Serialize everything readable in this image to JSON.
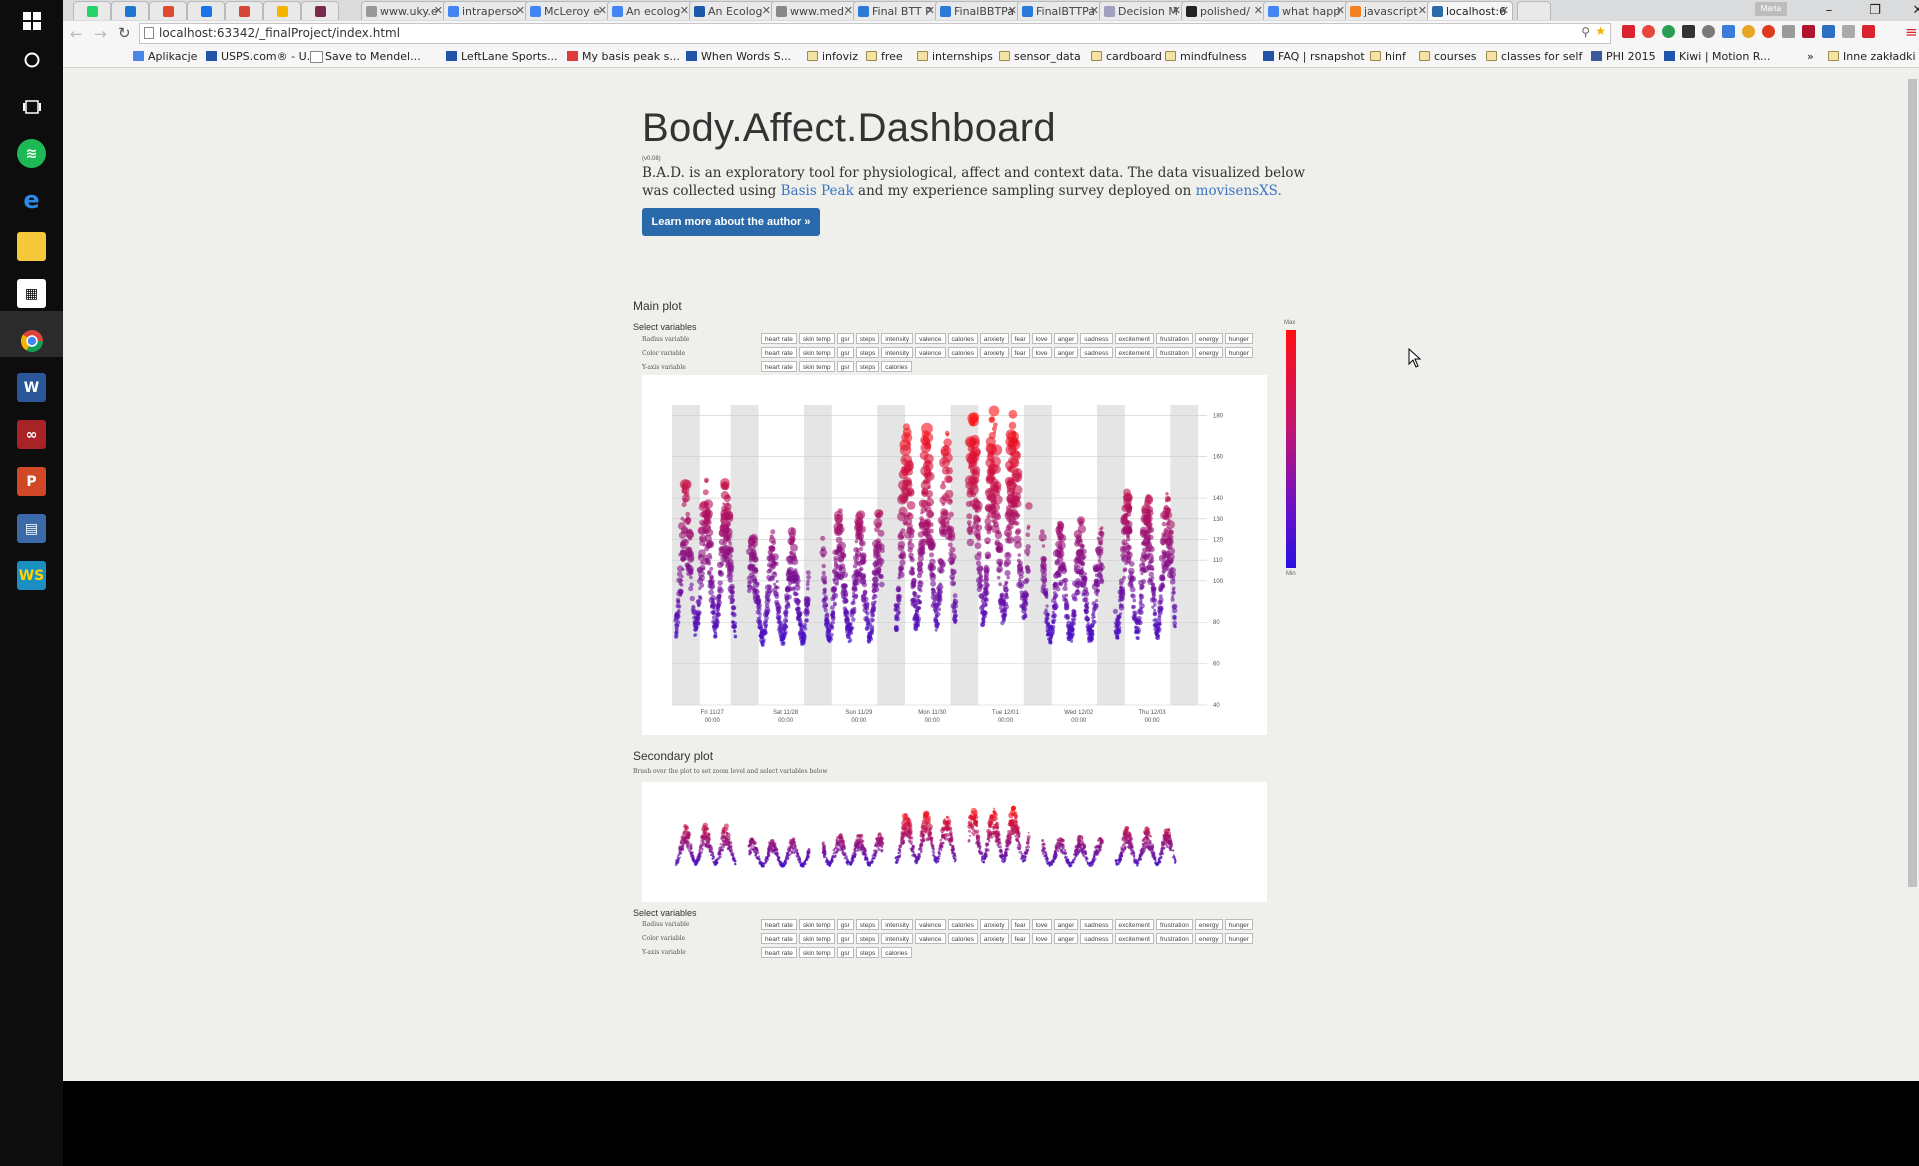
{
  "browser": {
    "tabs": [
      {
        "label": "www.uky.e",
        "fav": "#999"
      },
      {
        "label": "intraperso",
        "fav": "#4285f4"
      },
      {
        "label": "McLeroy e",
        "fav": "#4285f4"
      },
      {
        "label": "An ecolog",
        "fav": "#4285f4"
      },
      {
        "label": "An Ecolog",
        "fav": "#1a5aa8"
      },
      {
        "label": "www.med.",
        "fav": "#888"
      },
      {
        "label": "Final BTT P",
        "fav": "#2a7ad9"
      },
      {
        "label": "FinalBBTPa",
        "fav": "#2a7ad9"
      },
      {
        "label": "FinalBTTPa",
        "fav": "#2a7ad9"
      },
      {
        "label": "Decision M",
        "fav": "#a0a0c0"
      },
      {
        "label": "polished/",
        "fav": "#222"
      },
      {
        "label": "what happ",
        "fav": "#4285f4"
      },
      {
        "label": "javascript",
        "fav": "#f48024"
      },
      {
        "label": "localhost:6",
        "fav": "#2a6aaa",
        "active": true
      }
    ],
    "user_badge": "Marta",
    "url": "localhost:63342/_finalProject/index.html",
    "bookmarks": [
      {
        "label": "Aplikacje",
        "kind": "apps"
      },
      {
        "label": "USPS.com® - U...",
        "kind": "site"
      },
      {
        "label": "Save to Mendel...",
        "kind": "page"
      },
      {
        "label": "LeftLane Sports...",
        "kind": "site"
      },
      {
        "label": "My basis peak s...",
        "kind": "heart"
      },
      {
        "label": "When Words S...",
        "kind": "site"
      },
      {
        "label": "infoviz",
        "kind": "folder"
      },
      {
        "label": "free",
        "kind": "folder"
      },
      {
        "label": "internships",
        "kind": "folder"
      },
      {
        "label": "sensor_data",
        "kind": "folder"
      },
      {
        "label": "cardboard",
        "kind": "folder"
      },
      {
        "label": "mindfulness",
        "kind": "folder"
      },
      {
        "label": "FAQ | rsnapshot",
        "kind": "site"
      },
      {
        "label": "hinf",
        "kind": "folder"
      },
      {
        "label": "courses",
        "kind": "folder"
      },
      {
        "label": "classes for self",
        "kind": "folder"
      },
      {
        "label": "PHI 2015",
        "kind": "facebook"
      },
      {
        "label": "Kiwi | Motion R...",
        "kind": "site"
      }
    ],
    "bookmarks_overflow": "»",
    "other_bookmarks": "Inne zakładki"
  },
  "page": {
    "title": "Body.Affect.Dashboard",
    "version": "(v0.08)",
    "intro_before": "B.A.D. is an exploratory tool for physiological, affect and context data. The data visualized below was collected using ",
    "link_basis": "Basis Peak",
    "intro_middle": " and my experience sampling survey deployed on ",
    "link_movisens": "movisensXS.",
    "author_button": "Learn more about the author »",
    "main_plot_title": "Main plot",
    "secondary_plot_title": "Secondary plot",
    "select_variables": "Select variables",
    "brush_hint": "Brush over the plot to set zoom level and select variables below",
    "radius_label": "Radius variable",
    "color_label": "Color variable",
    "yaxis_label": "Y-axis variable",
    "all_vars": [
      "heart rate",
      "skin temp",
      "gsr",
      "steps",
      "intensity",
      "valence",
      "calories",
      "anxiety",
      "fear",
      "love",
      "anger",
      "sadness",
      "excitement",
      "frustration",
      "energy",
      "hunger"
    ],
    "y_vars": [
      "heart rate",
      "skin temp",
      "gsr",
      "steps",
      "calories"
    ],
    "legend_max": "Max",
    "legend_min": "Min"
  },
  "chart_data": {
    "type": "scatter",
    "title": "",
    "xlabel": "",
    "ylabel": "",
    "x_ticks": [
      "Fri 11/27 00:00",
      "Sat 11/28 00:00",
      "Sun 11/29 00:00",
      "Mon 11/30 00:00",
      "Tue 12/01 00:00",
      "Wed 12/02 00:00",
      "Thu 12/03 00:00"
    ],
    "y_ticks": [
      40,
      60,
      80,
      100,
      110,
      120,
      130,
      140,
      160,
      180
    ],
    "ylim": [
      40,
      185
    ],
    "color_scale": [
      "#2a10e0",
      "#ff1010"
    ],
    "grid": true,
    "night_shading": true,
    "daily_peak_heart_rate": [
      150,
      125,
      135,
      175,
      185,
      130,
      145
    ]
  },
  "icons": {
    "taskbar": [
      "windows-logo-icon",
      "cortana-icon",
      "task-view-icon",
      "spotify-icon",
      "edge-icon",
      "file-explorer-icon",
      "store-icon",
      "chrome-icon",
      "word-icon",
      "mendeley-icon",
      "powerpoint-icon",
      "app-icon",
      "webstorm-icon"
    ]
  }
}
